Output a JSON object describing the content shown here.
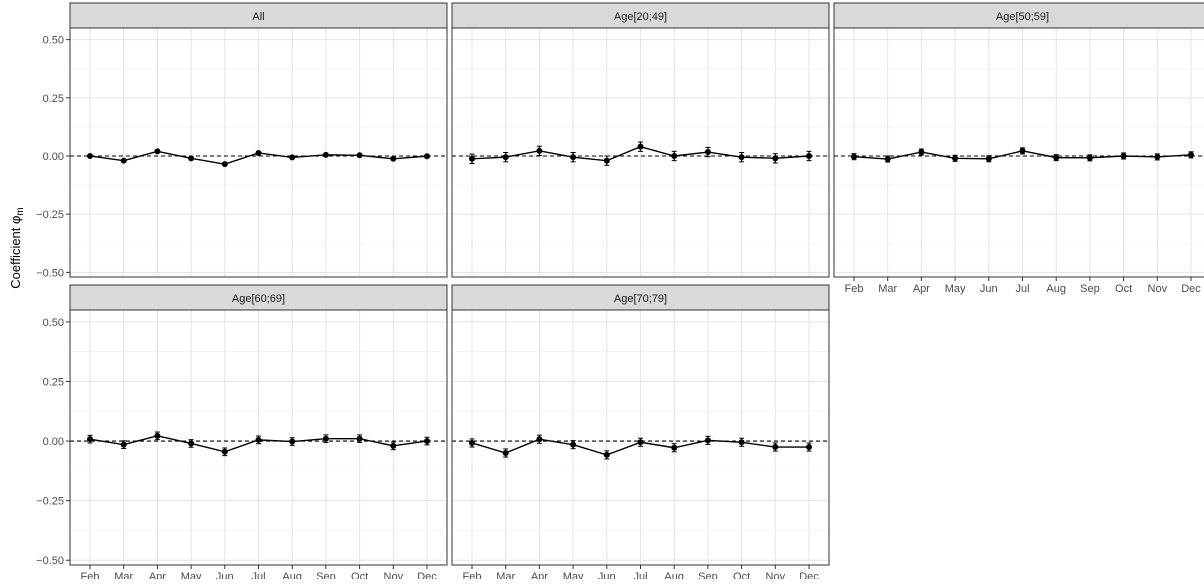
{
  "y_label_main": "Coefficient φ",
  "y_label_sub": "m",
  "chart_data": [
    {
      "type": "line",
      "title": "All",
      "categories": [
        "Feb",
        "Mar",
        "Apr",
        "May",
        "Jun",
        "Jul",
        "Aug",
        "Sep",
        "Oct",
        "Nov",
        "Dec"
      ],
      "y_ticks": [
        "0.50",
        "0.25",
        "0.00",
        "−0.25",
        "−0.50"
      ],
      "ylim": [
        -0.52,
        0.55
      ],
      "reference_line": 0,
      "values": [
        0.0,
        -0.02,
        0.02,
        -0.01,
        -0.035,
        0.013,
        -0.006,
        0.005,
        0.003,
        -0.012,
        -0.001
      ],
      "error": [
        0.004,
        0.004,
        0.004,
        0.004,
        0.004,
        0.004,
        0.004,
        0.004,
        0.004,
        0.004,
        0.004
      ]
    },
    {
      "type": "line",
      "title": "Age[20;49]",
      "categories": [
        "Feb",
        "Mar",
        "Apr",
        "May",
        "Jun",
        "Jul",
        "Aug",
        "Sep",
        "Oct",
        "Nov",
        "Dec"
      ],
      "ylim": [
        -0.52,
        0.55
      ],
      "reference_line": 0,
      "values": [
        -0.012,
        -0.005,
        0.022,
        -0.005,
        -0.02,
        0.04,
        0.0,
        0.017,
        -0.005,
        -0.01,
        0.0
      ],
      "error": [
        0.02,
        0.02,
        0.02,
        0.02,
        0.02,
        0.02,
        0.02,
        0.02,
        0.02,
        0.02,
        0.02
      ]
    },
    {
      "type": "line",
      "title": "Age[50;59]",
      "categories": [
        "Feb",
        "Mar",
        "Apr",
        "May",
        "Jun",
        "Jul",
        "Aug",
        "Sep",
        "Oct",
        "Nov",
        "Dec"
      ],
      "ylim": [
        -0.52,
        0.55
      ],
      "reference_line": 0,
      "values": [
        -0.003,
        -0.013,
        0.017,
        -0.01,
        -0.012,
        0.022,
        -0.007,
        -0.008,
        0.0,
        -0.004,
        0.005
      ],
      "error": [
        0.013,
        0.013,
        0.013,
        0.013,
        0.013,
        0.013,
        0.013,
        0.013,
        0.013,
        0.013,
        0.013
      ]
    },
    {
      "type": "line",
      "title": "Age[60;69]",
      "categories": [
        "Feb",
        "Mar",
        "Apr",
        "May",
        "Jun",
        "Jul",
        "Aug",
        "Sep",
        "Oct",
        "Nov",
        "Dec"
      ],
      "ylim": [
        -0.52,
        0.55
      ],
      "reference_line": 0,
      "values": [
        0.008,
        -0.015,
        0.022,
        -0.01,
        -0.045,
        0.005,
        -0.002,
        0.01,
        0.01,
        -0.02,
        0.0
      ],
      "error": [
        0.016,
        0.016,
        0.016,
        0.016,
        0.016,
        0.016,
        0.016,
        0.016,
        0.016,
        0.016,
        0.016
      ]
    },
    {
      "type": "line",
      "title": "Age[70;79]",
      "categories": [
        "Feb",
        "Mar",
        "Apr",
        "May",
        "Jun",
        "Jul",
        "Aug",
        "Sep",
        "Oct",
        "Nov",
        "Dec"
      ],
      "ylim": [
        -0.52,
        0.55
      ],
      "reference_line": 0,
      "values": [
        -0.008,
        -0.05,
        0.008,
        -0.015,
        -0.058,
        -0.005,
        -0.028,
        0.003,
        -0.005,
        -0.025,
        -0.025
      ],
      "error": [
        0.017,
        0.017,
        0.017,
        0.017,
        0.017,
        0.017,
        0.017,
        0.017,
        0.017,
        0.017,
        0.017
      ]
    }
  ]
}
